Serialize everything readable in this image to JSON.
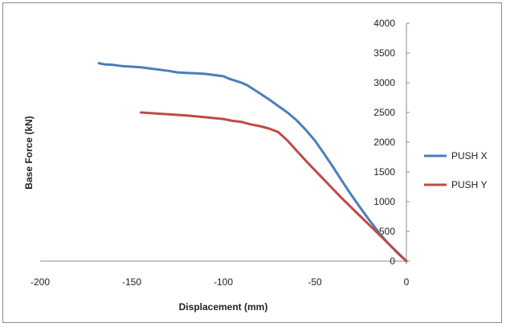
{
  "chart_data": {
    "type": "line",
    "title": "",
    "xlabel": "Displacement (mm)",
    "ylabel": "Base Force (kN)",
    "xlim": [
      -200,
      0
    ],
    "ylim": [
      0,
      4000
    ],
    "x_ticks": [
      -200,
      -150,
      -100,
      -50,
      0
    ],
    "y_ticks": [
      0,
      500,
      1000,
      1500,
      2000,
      2500,
      3000,
      3500,
      4000
    ],
    "grid": false,
    "legend_position": "right",
    "series": [
      {
        "name": "PUSH X",
        "color": "#4a7ebb",
        "points": [
          [
            -168,
            3330
          ],
          [
            -165,
            3310
          ],
          [
            -160,
            3300
          ],
          [
            -155,
            3280
          ],
          [
            -150,
            3270
          ],
          [
            -145,
            3260
          ],
          [
            -140,
            3240
          ],
          [
            -135,
            3220
          ],
          [
            -130,
            3200
          ],
          [
            -125,
            3175
          ],
          [
            -120,
            3165
          ],
          [
            -115,
            3160
          ],
          [
            -110,
            3150
          ],
          [
            -105,
            3130
          ],
          [
            -100,
            3110
          ],
          [
            -97,
            3070
          ],
          [
            -93,
            3030
          ],
          [
            -90,
            3000
          ],
          [
            -87,
            2960
          ],
          [
            -84,
            2900
          ],
          [
            -80,
            2820
          ],
          [
            -75,
            2720
          ],
          [
            -70,
            2610
          ],
          [
            -65,
            2500
          ],
          [
            -60,
            2370
          ],
          [
            -55,
            2210
          ],
          [
            -50,
            2030
          ],
          [
            -45,
            1810
          ],
          [
            -40,
            1580
          ],
          [
            -35,
            1340
          ],
          [
            -30,
            1110
          ],
          [
            -25,
            890
          ],
          [
            -20,
            680
          ],
          [
            -15,
            480
          ],
          [
            -10,
            300
          ],
          [
            -5,
            140
          ],
          [
            0,
            0
          ]
        ]
      },
      {
        "name": "PUSH Y",
        "color": "#be4b48",
        "points": [
          [
            -145,
            2500
          ],
          [
            -140,
            2490
          ],
          [
            -130,
            2470
          ],
          [
            -120,
            2450
          ],
          [
            -110,
            2420
          ],
          [
            -100,
            2390
          ],
          [
            -95,
            2360
          ],
          [
            -90,
            2340
          ],
          [
            -85,
            2300
          ],
          [
            -80,
            2270
          ],
          [
            -75,
            2230
          ],
          [
            -70,
            2170
          ],
          [
            -65,
            2030
          ],
          [
            -60,
            1860
          ],
          [
            -55,
            1690
          ],
          [
            -50,
            1530
          ],
          [
            -45,
            1370
          ],
          [
            -40,
            1210
          ],
          [
            -35,
            1050
          ],
          [
            -30,
            900
          ],
          [
            -25,
            750
          ],
          [
            -20,
            600
          ],
          [
            -15,
            450
          ],
          [
            -10,
            300
          ],
          [
            -5,
            150
          ],
          [
            0,
            0
          ]
        ]
      }
    ]
  }
}
